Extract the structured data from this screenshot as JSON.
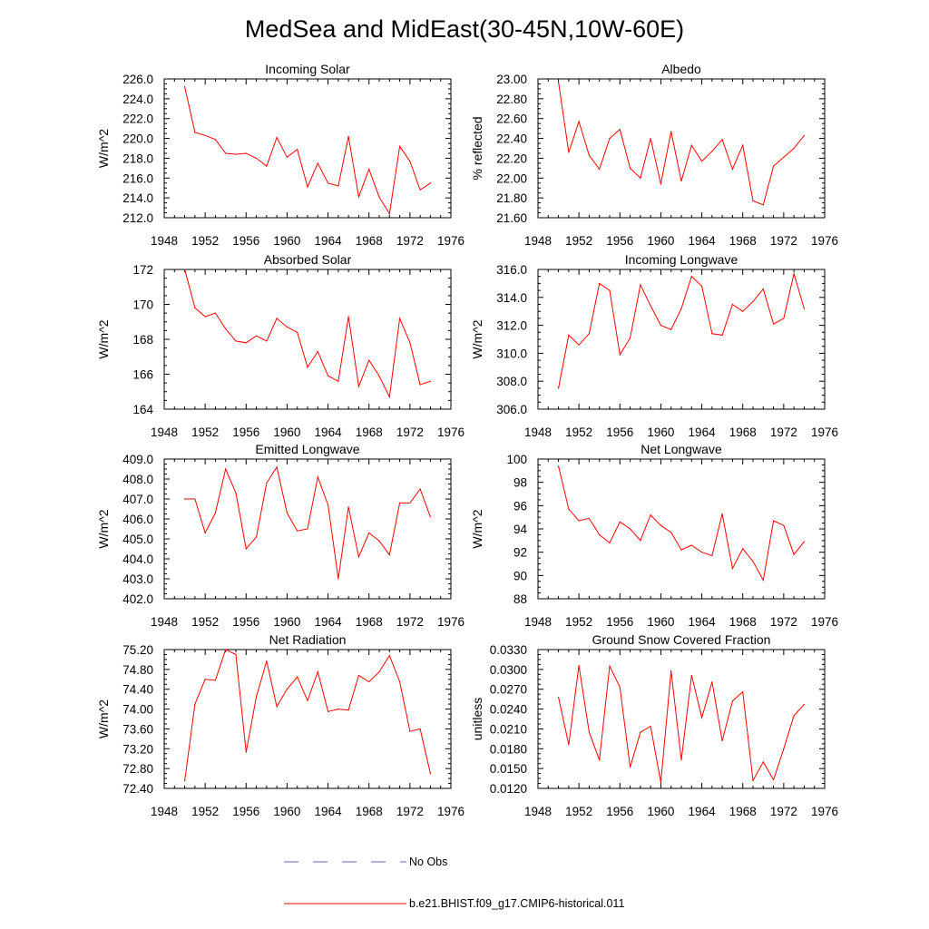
{
  "figure": {
    "title": "MedSea and MidEast(30-45N,10W-60E)"
  },
  "legend": [
    {
      "label": "No Obs",
      "color": "#5566bb",
      "dash": true
    },
    {
      "label": "b.e21.BHIST.f09_g17.CMIP6-historical.011",
      "color": "#ff0000",
      "dash": false
    }
  ],
  "chart_data": [
    {
      "type": "line",
      "title": "Incoming Solar",
      "ylabel": "W/m^2",
      "xlim": [
        1948,
        1976
      ],
      "ylim": [
        212,
        226
      ],
      "xticks": [
        1948,
        1952,
        1956,
        1960,
        1964,
        1968,
        1972,
        1976
      ],
      "xtick_labels": [
        "1948",
        "1952",
        "1956",
        "1960",
        "1964",
        "1968",
        "1972",
        "1976"
      ],
      "yticks": [
        212,
        214,
        216,
        218,
        220,
        222,
        224,
        226
      ],
      "ytick_labels": [
        "212.0",
        "214.0",
        "216.0",
        "218.0",
        "220.0",
        "222.0",
        "224.0",
        "226.0"
      ],
      "color": "#ff0000",
      "x": [
        1950,
        1951,
        1952,
        1953,
        1954,
        1955,
        1956,
        1957,
        1958,
        1959,
        1960,
        1961,
        1962,
        1963,
        1964,
        1965,
        1966,
        1967,
        1968,
        1969,
        1970,
        1971,
        1972,
        1973,
        1974
      ],
      "y": [
        225.2,
        220.6,
        220.3,
        219.9,
        218.5,
        218.4,
        218.5,
        218.0,
        217.2,
        220.1,
        218.1,
        218.9,
        215.1,
        217.5,
        215.5,
        215.2,
        220.2,
        214.1,
        216.9,
        214.1,
        212.4,
        219.2,
        217.7,
        214.8,
        215.5
      ]
    },
    {
      "type": "line",
      "title": "Albedo",
      "ylabel": "% reflected",
      "xlim": [
        1948,
        1976
      ],
      "ylim": [
        21.6,
        23.0
      ],
      "xticks": [
        1948,
        1952,
        1956,
        1960,
        1964,
        1968,
        1972,
        1976
      ],
      "xtick_labels": [
        "1948",
        "1952",
        "1956",
        "1960",
        "1964",
        "1968",
        "1972",
        "1976"
      ],
      "yticks": [
        21.6,
        21.8,
        22.0,
        22.2,
        22.4,
        22.6,
        22.8,
        23.0
      ],
      "ytick_labels": [
        "21.60",
        "21.80",
        "22.00",
        "22.20",
        "22.40",
        "22.60",
        "22.80",
        "23.00"
      ],
      "color": "#ff0000",
      "x": [
        1950,
        1951,
        1952,
        1953,
        1954,
        1955,
        1956,
        1957,
        1958,
        1959,
        1960,
        1961,
        1962,
        1963,
        1964,
        1965,
        1966,
        1967,
        1968,
        1969,
        1970,
        1971,
        1972,
        1973,
        1974
      ],
      "y": [
        22.97,
        22.26,
        22.57,
        22.23,
        22.09,
        22.4,
        22.49,
        22.1,
        22.0,
        22.4,
        21.94,
        22.47,
        21.97,
        22.33,
        22.17,
        22.27,
        22.39,
        22.09,
        22.33,
        21.77,
        21.73,
        22.12,
        22.21,
        22.3,
        22.43
      ]
    },
    {
      "type": "line",
      "title": "Absorbed Solar",
      "ylabel": "W/m^2",
      "xlim": [
        1948,
        1976
      ],
      "ylim": [
        164,
        172
      ],
      "xticks": [
        1948,
        1952,
        1956,
        1960,
        1964,
        1968,
        1972,
        1976
      ],
      "xtick_labels": [
        "1948",
        "1952",
        "1956",
        "1960",
        "1964",
        "1968",
        "1972",
        "1976"
      ],
      "yticks": [
        164,
        166,
        168,
        170,
        172
      ],
      "ytick_labels": [
        "164",
        "166",
        "168",
        "170",
        "172"
      ],
      "color": "#ff0000",
      "x": [
        1950,
        1951,
        1952,
        1953,
        1954,
        1955,
        1956,
        1957,
        1958,
        1959,
        1960,
        1961,
        1962,
        1963,
        1964,
        1965,
        1966,
        1967,
        1968,
        1969,
        1970,
        1971,
        1972,
        1973,
        1974
      ],
      "y": [
        172.0,
        169.8,
        169.3,
        169.5,
        168.6,
        167.9,
        167.8,
        168.2,
        167.9,
        169.2,
        168.7,
        168.4,
        166.4,
        167.3,
        165.9,
        165.6,
        169.3,
        165.3,
        166.8,
        165.9,
        164.7,
        169.2,
        167.8,
        165.4,
        165.6
      ]
    },
    {
      "type": "line",
      "title": "Incoming Longwave",
      "ylabel": "W/m^2",
      "xlim": [
        1948,
        1976
      ],
      "ylim": [
        306,
        316
      ],
      "xticks": [
        1948,
        1952,
        1956,
        1960,
        1964,
        1968,
        1972,
        1976
      ],
      "xtick_labels": [
        "1948",
        "1952",
        "1956",
        "1960",
        "1964",
        "1968",
        "1972",
        "1976"
      ],
      "yticks": [
        306,
        308,
        310,
        312,
        314,
        316
      ],
      "ytick_labels": [
        "306.0",
        "308.0",
        "310.0",
        "312.0",
        "314.0",
        "316.0"
      ],
      "color": "#ff0000",
      "x": [
        1950,
        1951,
        1952,
        1953,
        1954,
        1955,
        1956,
        1957,
        1958,
        1959,
        1960,
        1961,
        1962,
        1963,
        1964,
        1965,
        1966,
        1967,
        1968,
        1969,
        1970,
        1971,
        1972,
        1973,
        1974
      ],
      "y": [
        307.5,
        311.3,
        310.6,
        311.4,
        315.0,
        314.5,
        309.9,
        311.1,
        314.9,
        313.4,
        312.0,
        311.7,
        313.2,
        315.5,
        314.8,
        311.4,
        311.3,
        313.5,
        313.0,
        313.7,
        314.6,
        312.1,
        312.5,
        315.7,
        313.2
      ]
    },
    {
      "type": "line",
      "title": "Emitted Longwave",
      "ylabel": "W/m^2",
      "xlim": [
        1948,
        1976
      ],
      "ylim": [
        402,
        409
      ],
      "xticks": [
        1948,
        1952,
        1956,
        1960,
        1964,
        1968,
        1972,
        1976
      ],
      "xtick_labels": [
        "1948",
        "1952",
        "1956",
        "1960",
        "1964",
        "1968",
        "1972",
        "1976"
      ],
      "yticks": [
        402,
        403,
        404,
        405,
        406,
        407,
        408,
        409
      ],
      "ytick_labels": [
        "402.0",
        "403.0",
        "404.0",
        "405.0",
        "406.0",
        "407.0",
        "408.0",
        "409.0"
      ],
      "color": "#ff0000",
      "x": [
        1950,
        1951,
        1952,
        1953,
        1954,
        1955,
        1956,
        1957,
        1958,
        1959,
        1960,
        1961,
        1962,
        1963,
        1964,
        1965,
        1966,
        1967,
        1968,
        1969,
        1970,
        1971,
        1972,
        1973,
        1974
      ],
      "y": [
        407.0,
        407.0,
        405.3,
        406.3,
        408.5,
        407.3,
        404.5,
        405.1,
        407.8,
        408.6,
        406.3,
        405.4,
        405.5,
        408.1,
        406.7,
        403.0,
        406.6,
        404.1,
        405.3,
        404.9,
        404.2,
        406.8,
        406.8,
        407.5,
        406.1
      ]
    },
    {
      "type": "line",
      "title": "Net Longwave",
      "ylabel": "W/m^2",
      "xlim": [
        1948,
        1976
      ],
      "ylim": [
        88,
        100
      ],
      "xticks": [
        1948,
        1952,
        1956,
        1960,
        1964,
        1968,
        1972,
        1976
      ],
      "xtick_labels": [
        "1948",
        "1952",
        "1956",
        "1960",
        "1964",
        "1968",
        "1972",
        "1976"
      ],
      "yticks": [
        88,
        90,
        92,
        94,
        96,
        98,
        100
      ],
      "ytick_labels": [
        "88",
        "90",
        "92",
        "94",
        "96",
        "98",
        "100"
      ],
      "color": "#ff0000",
      "x": [
        1950,
        1951,
        1952,
        1953,
        1954,
        1955,
        1956,
        1957,
        1958,
        1959,
        1960,
        1961,
        1962,
        1963,
        1964,
        1965,
        1966,
        1967,
        1968,
        1969,
        1970,
        1971,
        1972,
        1973,
        1974
      ],
      "y": [
        99.4,
        95.7,
        94.7,
        94.9,
        93.5,
        92.8,
        94.6,
        94.0,
        93.0,
        95.2,
        94.3,
        93.7,
        92.2,
        92.6,
        92.0,
        91.7,
        95.3,
        90.6,
        92.3,
        91.2,
        89.6,
        94.7,
        94.3,
        91.8,
        92.9
      ]
    },
    {
      "type": "line",
      "title": "Net Radiation",
      "ylabel": "W/m^2",
      "xlim": [
        1948,
        1976
      ],
      "ylim": [
        72.4,
        75.2
      ],
      "xticks": [
        1948,
        1952,
        1956,
        1960,
        1964,
        1968,
        1972,
        1976
      ],
      "xtick_labels": [
        "1948",
        "1952",
        "1956",
        "1960",
        "1964",
        "1968",
        "1972",
        "1976"
      ],
      "yticks": [
        72.4,
        72.8,
        73.2,
        73.6,
        74.0,
        74.4,
        74.8,
        75.2
      ],
      "ytick_labels": [
        "72.40",
        "72.80",
        "73.20",
        "73.60",
        "74.00",
        "74.40",
        "74.80",
        "75.20"
      ],
      "color": "#ff0000",
      "x": [
        1950,
        1951,
        1952,
        1953,
        1954,
        1955,
        1956,
        1957,
        1958,
        1959,
        1960,
        1961,
        1962,
        1963,
        1964,
        1965,
        1966,
        1967,
        1968,
        1969,
        1970,
        1971,
        1972,
        1973,
        1974
      ],
      "y": [
        72.55,
        74.1,
        74.6,
        74.58,
        75.2,
        75.1,
        73.13,
        74.25,
        74.97,
        74.05,
        74.4,
        74.65,
        74.17,
        74.75,
        73.95,
        74.0,
        73.98,
        74.68,
        74.55,
        74.75,
        75.08,
        74.55,
        73.55,
        73.6,
        72.7
      ]
    },
    {
      "type": "line",
      "title": "Ground Snow Covered Fraction",
      "ylabel": "unitless",
      "xlim": [
        1948,
        1976
      ],
      "ylim": [
        0.012,
        0.033
      ],
      "xticks": [
        1948,
        1952,
        1956,
        1960,
        1964,
        1968,
        1972,
        1976
      ],
      "xtick_labels": [
        "1948",
        "1952",
        "1956",
        "1960",
        "1964",
        "1968",
        "1972",
        "1976"
      ],
      "yticks": [
        0.012,
        0.015,
        0.018,
        0.021,
        0.024,
        0.027,
        0.03,
        0.033
      ],
      "ytick_labels": [
        "0.0120",
        "0.0150",
        "0.0180",
        "0.0210",
        "0.0240",
        "0.0270",
        "0.0300",
        "0.0330"
      ],
      "color": "#ff0000",
      "x": [
        1950,
        1951,
        1952,
        1953,
        1954,
        1955,
        1956,
        1957,
        1958,
        1959,
        1960,
        1961,
        1962,
        1963,
        1964,
        1965,
        1966,
        1967,
        1968,
        1969,
        1970,
        1971,
        1972,
        1973,
        1974
      ],
      "y": [
        0.0258,
        0.0186,
        0.0306,
        0.0205,
        0.0163,
        0.0305,
        0.0273,
        0.0152,
        0.0205,
        0.0214,
        0.0129,
        0.0298,
        0.0163,
        0.0291,
        0.0227,
        0.0281,
        0.0192,
        0.0252,
        0.0266,
        0.0132,
        0.016,
        0.0133,
        0.018,
        0.023,
        0.0247
      ]
    }
  ]
}
